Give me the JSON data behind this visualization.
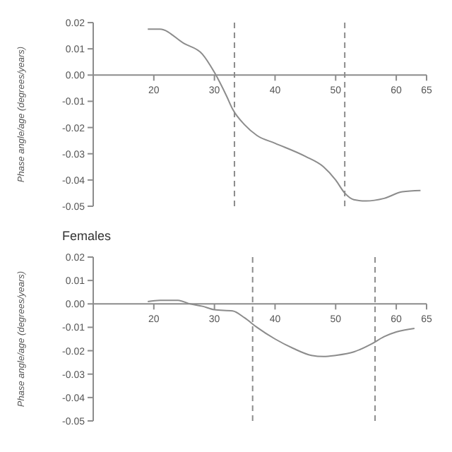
{
  "chart_data": [
    {
      "type": "line",
      "ylabel": "Phase angle/age (degrees/years)",
      "x": [
        19,
        21,
        25,
        28,
        30,
        32,
        33,
        35,
        37,
        40,
        45,
        48,
        50,
        51.5,
        53,
        55,
        58,
        61,
        64
      ],
      "series": [
        {
          "color": "#8c8c8c",
          "values": [
            0.0175,
            0.0175,
            0.012,
            0.008,
            0.001,
            -0.008,
            -0.013,
            -0.019,
            -0.023,
            -0.026,
            -0.031,
            -0.035,
            -0.04,
            -0.045,
            -0.0475,
            -0.048,
            -0.047,
            -0.0445,
            -0.044
          ]
        }
      ],
      "xlim": [
        10,
        65
      ],
      "xticks": [
        20,
        30,
        40,
        50,
        60,
        65
      ],
      "ylim": [
        -0.05,
        0.02
      ],
      "yticks": [
        0.02,
        0.01,
        {
          "value": 0,
          "label": "0.00"
        },
        -0.01,
        -0.02,
        -0.03,
        -0.04,
        -0.05
      ],
      "ref_lines": [
        {
          "axis": "x",
          "value": 33.3,
          "color": "#8c8c8c",
          "line_style": "dashed"
        },
        {
          "axis": "x",
          "value": 51.5,
          "color": "#8c8c8c",
          "line_style": "dashed"
        }
      ],
      "grid": false,
      "legend": false,
      "marker": "none",
      "line_style": "solid"
    },
    {
      "type": "line",
      "title": "Females",
      "ylabel": "Phase angle/age (degrees/years)",
      "x": [
        19,
        21,
        24,
        26,
        28,
        30,
        33,
        35,
        37,
        40,
        43,
        46,
        48,
        50,
        53,
        56,
        58,
        60,
        63
      ],
      "series": [
        {
          "color": "#8c8c8c",
          "values": [
            0.001,
            0.0015,
            0.0015,
            0,
            -0.001,
            -0.0025,
            -0.003,
            -0.006,
            -0.01,
            -0.015,
            -0.019,
            -0.022,
            -0.0225,
            -0.022,
            -0.0205,
            -0.017,
            -0.014,
            -0.012,
            -0.0105
          ]
        }
      ],
      "xlim": [
        10,
        65
      ],
      "xticks": [
        20,
        30,
        40,
        50,
        60,
        65
      ],
      "ylim": [
        -0.05,
        0.02
      ],
      "yticks": [
        0.02,
        0.01,
        {
          "value": 0,
          "label": "0.00"
        },
        -0.01,
        -0.02,
        -0.03,
        -0.04,
        -0.05
      ],
      "ref_lines": [
        {
          "axis": "x",
          "value": 36.3,
          "color": "#8c8c8c",
          "line_style": "dashed"
        },
        {
          "axis": "x",
          "value": 56.5,
          "color": "#8c8c8c",
          "line_style": "dashed"
        }
      ],
      "grid": false,
      "legend": false,
      "marker": "none",
      "line_style": "solid"
    }
  ]
}
